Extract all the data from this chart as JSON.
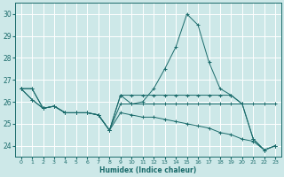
{
  "xlabel": "Humidex (Indice chaleur)",
  "xlim": [
    -0.5,
    23.5
  ],
  "ylim": [
    23.5,
    30.5
  ],
  "yticks": [
    24,
    25,
    26,
    27,
    28,
    29,
    30
  ],
  "xticks": [
    0,
    1,
    2,
    3,
    4,
    5,
    6,
    7,
    8,
    9,
    10,
    11,
    12,
    13,
    14,
    15,
    16,
    17,
    18,
    19,
    20,
    21,
    22,
    23
  ],
  "background_color": "#cde8e8",
  "line_color": "#1a6b6b",
  "grid_color": "#ffffff",
  "series": [
    [
      26.6,
      26.6,
      25.7,
      25.8,
      25.5,
      25.5,
      25.5,
      25.4,
      24.7,
      26.3,
      25.9,
      26.0,
      26.6,
      27.5,
      28.5,
      30.0,
      29.5,
      27.8,
      26.6,
      26.3,
      25.9,
      24.3,
      23.8,
      24.0
    ],
    [
      26.6,
      26.1,
      25.7,
      25.8,
      25.5,
      25.5,
      25.5,
      25.4,
      24.7,
      25.9,
      25.9,
      25.9,
      25.9,
      25.9,
      25.9,
      25.9,
      25.9,
      25.9,
      25.9,
      25.9,
      25.9,
      25.9,
      25.9,
      25.9
    ],
    [
      26.6,
      26.6,
      25.7,
      25.8,
      25.5,
      25.5,
      25.5,
      25.4,
      24.7,
      25.5,
      25.4,
      25.3,
      25.3,
      25.2,
      25.1,
      25.0,
      24.9,
      24.8,
      24.6,
      24.5,
      24.3,
      24.2,
      23.8,
      24.0
    ],
    [
      26.6,
      26.1,
      25.7,
      25.8,
      25.5,
      25.5,
      25.5,
      25.4,
      24.7,
      26.3,
      26.3,
      26.3,
      26.3,
      26.3,
      26.3,
      26.3,
      26.3,
      26.3,
      26.3,
      26.3,
      25.9,
      24.3,
      23.8,
      24.0
    ]
  ]
}
